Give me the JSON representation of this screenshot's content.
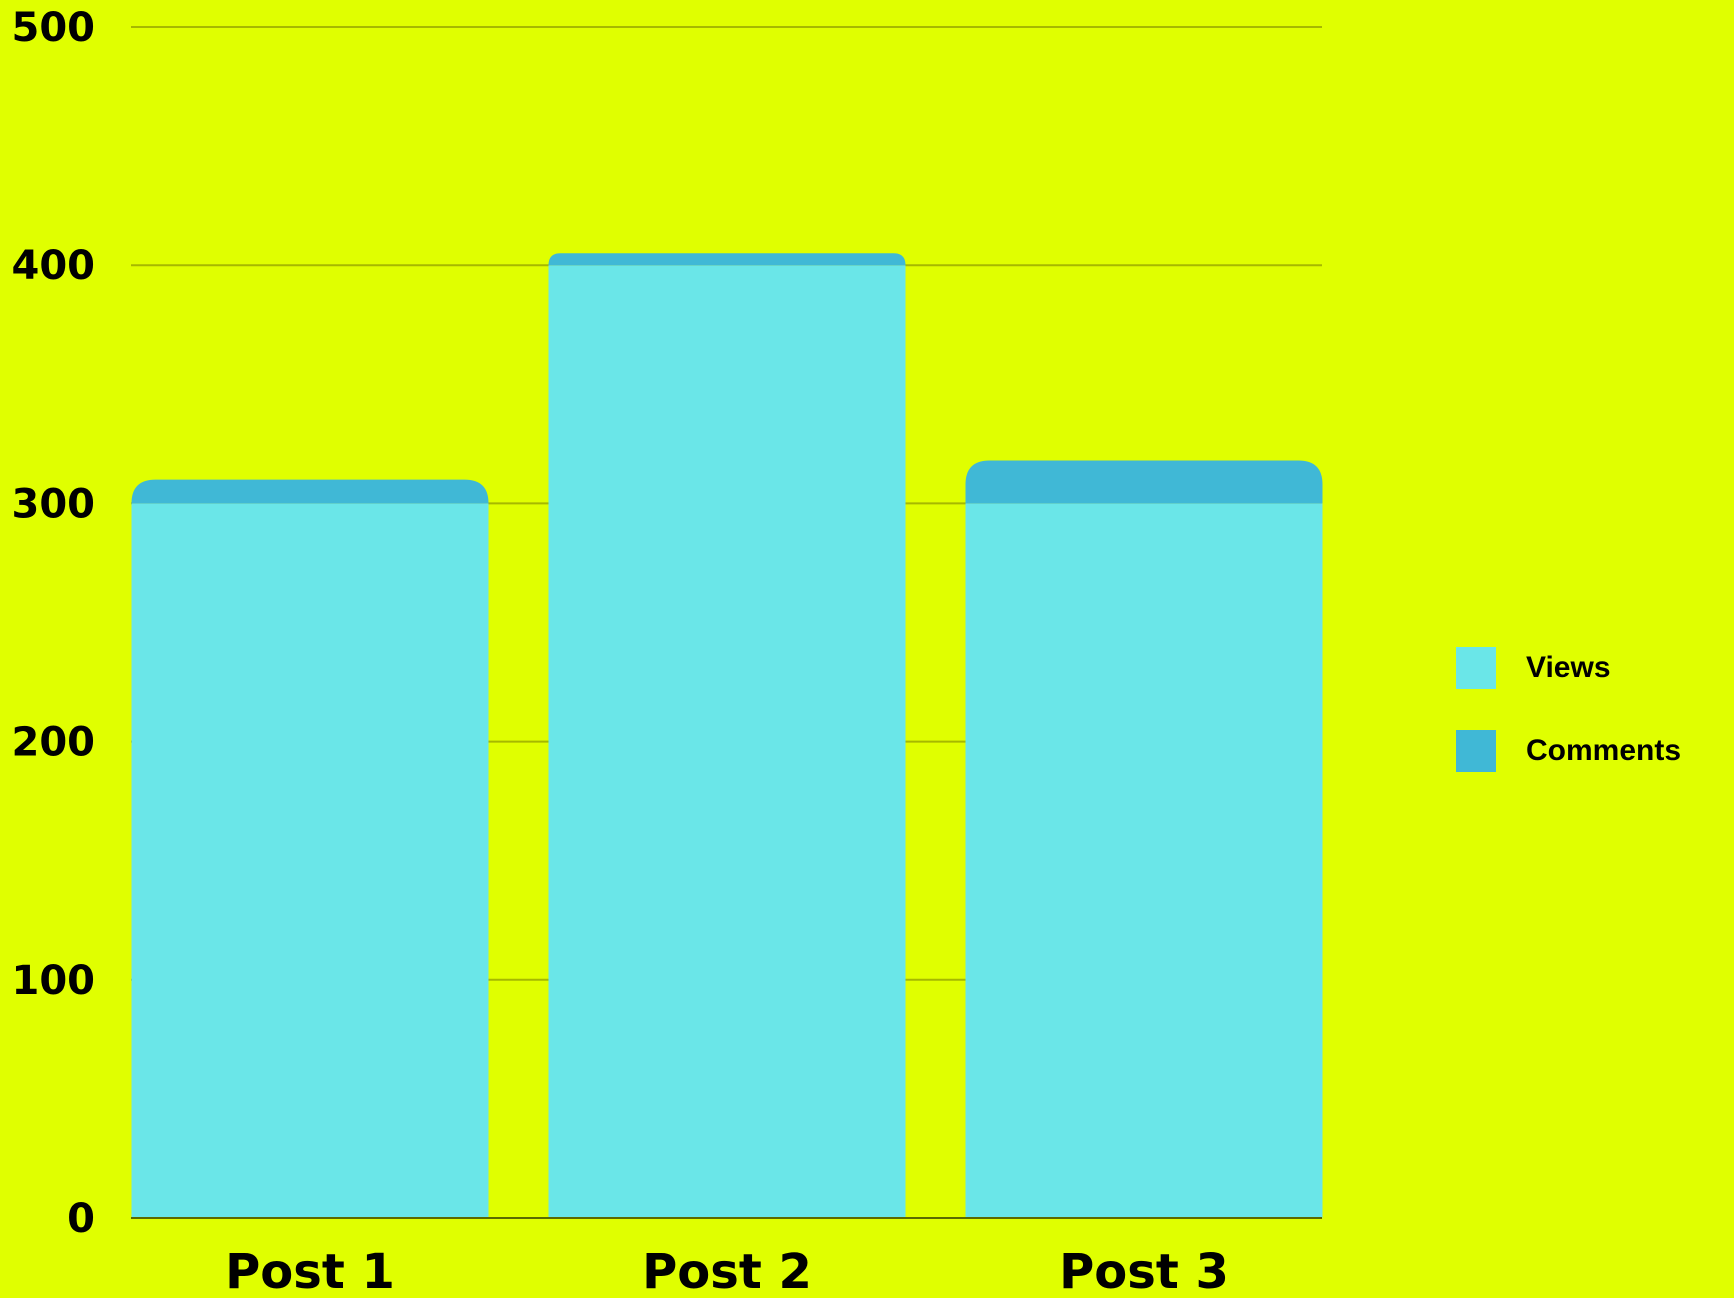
{
  "colors": {
    "background": "#e0ff00",
    "gridline": "#a6b800",
    "axis_text": "#000000"
  },
  "chart_data": {
    "type": "bar",
    "stacked": true,
    "categories": [
      "Post 1",
      "Post 2",
      "Post 3"
    ],
    "series": [
      {
        "name": "Views",
        "values": [
          300,
          400,
          300
        ],
        "color": "#6ae6e8"
      },
      {
        "name": "Comments",
        "values": [
          10,
          5,
          18
        ],
        "color": "#40b8d6"
      }
    ],
    "ylim": [
      0,
      500
    ],
    "yticks": [
      0,
      100,
      200,
      300,
      400,
      500
    ],
    "grid": true,
    "legend_position": "right",
    "title": "",
    "xlabel": "",
    "ylabel": ""
  },
  "legend": {
    "items": [
      {
        "label": "Views",
        "color": "#6ae6e8"
      },
      {
        "label": "Comments",
        "color": "#40b8d6"
      }
    ]
  }
}
